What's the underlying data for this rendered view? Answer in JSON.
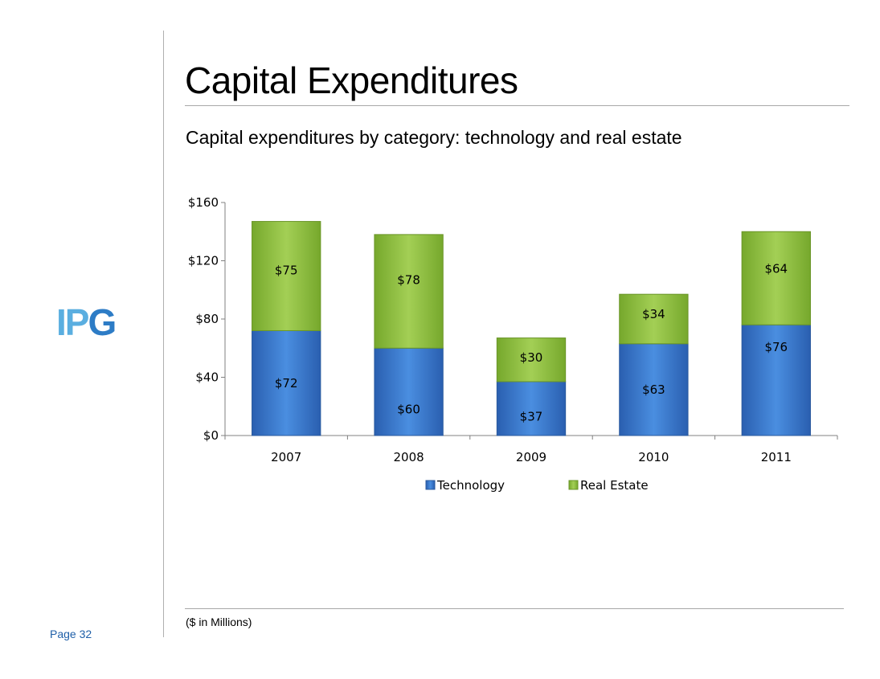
{
  "slide": {
    "title": "Capital Expenditures",
    "subtitle": "Capital expenditures by category: technology and real estate",
    "footnote": "($ in Millions)",
    "page_label": "Page 32",
    "logo_text_left": "IP",
    "logo_text_right": "G"
  },
  "colors": {
    "technology": "#3b78d0",
    "real_estate": "#8fbf3e",
    "logo_light": "#5aaee0",
    "logo_dark": "#2d7cc6"
  },
  "chart_data": {
    "type": "bar",
    "stacked": true,
    "categories": [
      "2007",
      "2008",
      "2009",
      "2010",
      "2011"
    ],
    "series": [
      {
        "name": "Technology",
        "values": [
          72,
          60,
          37,
          63,
          76
        ],
        "labels": [
          "$72",
          "$60",
          "$37",
          "$63",
          "$76"
        ]
      },
      {
        "name": "Real Estate",
        "values": [
          75,
          78,
          30,
          34,
          64
        ],
        "labels": [
          "$75",
          "$78",
          "$30",
          "$34",
          "$64"
        ]
      }
    ],
    "ylim": [
      0,
      160
    ],
    "yticks": [
      0,
      40,
      80,
      120,
      160
    ],
    "ytick_labels": [
      "$0",
      "$40",
      "$80",
      "$120",
      "$160"
    ],
    "grid": false,
    "legend_position": "bottom"
  }
}
